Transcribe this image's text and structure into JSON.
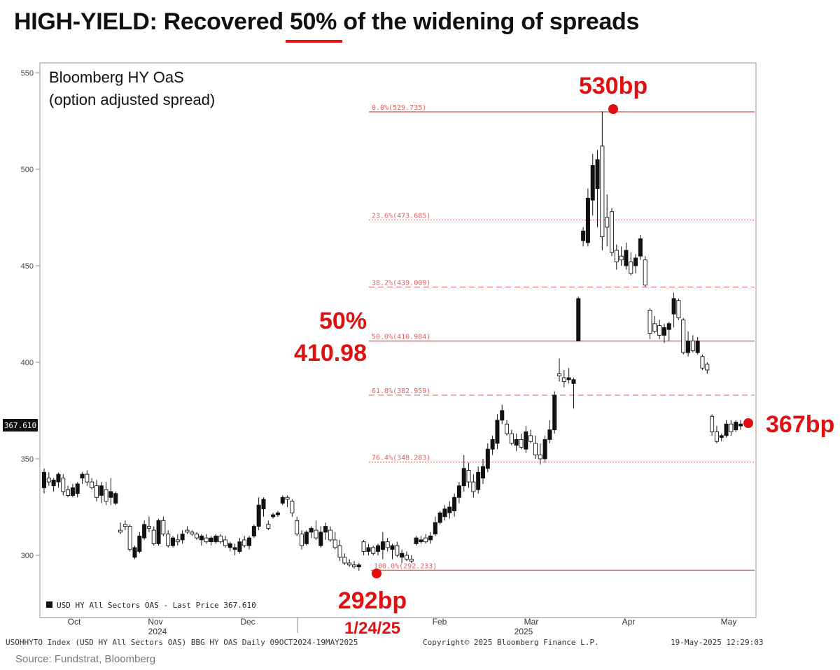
{
  "title": {
    "before": "HIGH-YIELD: Recovered ",
    "highlight": "50%",
    "after": " of the widening of spreads"
  },
  "chart_data": {
    "type": "candlestick",
    "title": "Bloomberg HY OaS",
    "subtitle": "(option adjusted spread)",
    "y_ticks": [
      300,
      350,
      400,
      450,
      500,
      550
    ],
    "ylim": [
      280,
      555
    ],
    "x_month_labels": [
      "Oct",
      "Nov",
      "Dec",
      "Feb",
      "Mar",
      "Apr",
      "May"
    ],
    "x_year_labels": [
      "2024",
      "2025"
    ],
    "x_range": [
      "09OCT2024",
      "19MAY2025"
    ],
    "last_price": 367.61,
    "last_price_label": "367.610",
    "legend": "USD HY All Sectors OAS - Last Price 367.610",
    "fib_levels": [
      {
        "label": "0.0%(529.735)",
        "value": 529.735,
        "style": "solid"
      },
      {
        "label": "23.6%(473.685)",
        "value": 473.685,
        "style": "dotted"
      },
      {
        "label": "38.2%(439.009)",
        "value": 439.009,
        "style": "dashed"
      },
      {
        "label": "50.0%(410.984)",
        "value": 410.984,
        "style": "solid"
      },
      {
        "label": "61.8%(382.959)",
        "value": 382.959,
        "style": "dashed"
      },
      {
        "label": "76.4%(348.283)",
        "value": 348.283,
        "style": "dotted"
      },
      {
        "label": "100.0%(292.233)",
        "value": 292.233,
        "style": "solid"
      }
    ],
    "annotations": {
      "peak": "530bp",
      "trough": "292bp",
      "trough_date": "1/24/25",
      "last": "367bp",
      "mid_pct": "50%",
      "mid_value": "410.98"
    },
    "candles": [
      {
        "o": 335,
        "h": 345,
        "l": 332,
        "c": 343
      },
      {
        "o": 340,
        "h": 343,
        "l": 336,
        "c": 338
      },
      {
        "o": 336,
        "h": 340,
        "l": 333,
        "c": 339
      },
      {
        "o": 338,
        "h": 343,
        "l": 335,
        "c": 342
      },
      {
        "o": 340,
        "h": 342,
        "l": 331,
        "c": 333
      },
      {
        "o": 334,
        "h": 336,
        "l": 330,
        "c": 331
      },
      {
        "o": 331,
        "h": 337,
        "l": 330,
        "c": 335
      },
      {
        "o": 332,
        "h": 338,
        "l": 330,
        "c": 337
      },
      {
        "o": 340,
        "h": 343,
        "l": 337,
        "c": 342
      },
      {
        "o": 342,
        "h": 344,
        "l": 336,
        "c": 338
      },
      {
        "o": 338,
        "h": 340,
        "l": 334,
        "c": 335
      },
      {
        "o": 336,
        "h": 339,
        "l": 328,
        "c": 330
      },
      {
        "o": 331,
        "h": 338,
        "l": 327,
        "c": 336
      },
      {
        "o": 334,
        "h": 338,
        "l": 326,
        "c": 328
      },
      {
        "o": 330,
        "h": 340,
        "l": 326,
        "c": 333
      },
      {
        "o": 327,
        "h": 333,
        "l": 326,
        "c": 332
      },
      {
        "o": 313,
        "h": 317,
        "l": 311,
        "c": 312
      },
      {
        "o": 316,
        "h": 318,
        "l": 313,
        "c": 315
      },
      {
        "o": 315,
        "h": 316,
        "l": 302,
        "c": 303
      },
      {
        "o": 299,
        "h": 305,
        "l": 298,
        "c": 304
      },
      {
        "o": 302,
        "h": 312,
        "l": 301,
        "c": 310
      },
      {
        "o": 309,
        "h": 318,
        "l": 308,
        "c": 316
      },
      {
        "o": 315,
        "h": 320,
        "l": 312,
        "c": 314
      },
      {
        "o": 313,
        "h": 315,
        "l": 305,
        "c": 306
      },
      {
        "o": 306,
        "h": 319,
        "l": 305,
        "c": 318
      },
      {
        "o": 318,
        "h": 320,
        "l": 310,
        "c": 311
      },
      {
        "o": 311,
        "h": 313,
        "l": 304,
        "c": 305
      },
      {
        "o": 305,
        "h": 310,
        "l": 304,
        "c": 309
      },
      {
        "o": 308,
        "h": 311,
        "l": 305,
        "c": 307
      },
      {
        "o": 308,
        "h": 313,
        "l": 306,
        "c": 311
      },
      {
        "o": 313,
        "h": 315,
        "l": 311,
        "c": 312
      },
      {
        "o": 312,
        "h": 313,
        "l": 310,
        "c": 311
      },
      {
        "o": 311,
        "h": 312,
        "l": 308,
        "c": 309
      },
      {
        "o": 308,
        "h": 311,
        "l": 305,
        "c": 310
      },
      {
        "o": 309,
        "h": 311,
        "l": 306,
        "c": 307
      },
      {
        "o": 307,
        "h": 310,
        "l": 305,
        "c": 309
      },
      {
        "o": 307,
        "h": 311,
        "l": 306,
        "c": 310
      },
      {
        "o": 310,
        "h": 311,
        "l": 306,
        "c": 307
      },
      {
        "o": 308,
        "h": 310,
        "l": 304,
        "c": 305
      },
      {
        "o": 304,
        "h": 307,
        "l": 302,
        "c": 306
      },
      {
        "o": 303,
        "h": 306,
        "l": 300,
        "c": 304
      },
      {
        "o": 302,
        "h": 309,
        "l": 301,
        "c": 307
      },
      {
        "o": 308,
        "h": 310,
        "l": 304,
        "c": 305
      },
      {
        "o": 305,
        "h": 310,
        "l": 303,
        "c": 309
      },
      {
        "o": 310,
        "h": 316,
        "l": 309,
        "c": 315
      },
      {
        "o": 315,
        "h": 330,
        "l": 313,
        "c": 326
      },
      {
        "o": 324,
        "h": 330,
        "l": 320,
        "c": 329
      },
      {
        "o": 316,
        "h": 318,
        "l": 313,
        "c": 314
      },
      {
        "o": 320,
        "h": 322,
        "l": 319,
        "c": 321
      },
      {
        "o": 321,
        "h": 323,
        "l": 320,
        "c": 322
      },
      {
        "o": 327,
        "h": 331,
        "l": 326,
        "c": 330
      },
      {
        "o": 330,
        "h": 331,
        "l": 325,
        "c": 329
      },
      {
        "o": 328,
        "h": 329,
        "l": 320,
        "c": 322
      },
      {
        "o": 318,
        "h": 320,
        "l": 310,
        "c": 311
      },
      {
        "o": 311,
        "h": 313,
        "l": 303,
        "c": 305
      },
      {
        "o": 306,
        "h": 313,
        "l": 305,
        "c": 312
      },
      {
        "o": 312,
        "h": 315,
        "l": 309,
        "c": 314
      },
      {
        "o": 313,
        "h": 318,
        "l": 308,
        "c": 309
      },
      {
        "o": 305,
        "h": 315,
        "l": 304,
        "c": 312
      },
      {
        "o": 312,
        "h": 317,
        "l": 308,
        "c": 315
      },
      {
        "o": 313,
        "h": 315,
        "l": 307,
        "c": 308
      },
      {
        "o": 308,
        "h": 312,
        "l": 303,
        "c": 304
      },
      {
        "o": 305,
        "h": 308,
        "l": 297,
        "c": 299
      },
      {
        "o": 299,
        "h": 301,
        "l": 295,
        "c": 296
      },
      {
        "o": 296,
        "h": 298,
        "l": 294,
        "c": 295
      },
      {
        "o": 295,
        "h": 297,
        "l": 293,
        "c": 294
      },
      {
        "o": 294,
        "h": 296,
        "l": 292,
        "c": 295
      },
      {
        "o": 307,
        "h": 308,
        "l": 300,
        "c": 302
      },
      {
        "o": 302,
        "h": 306,
        "l": 300,
        "c": 304
      },
      {
        "o": 304,
        "h": 305,
        "l": 300,
        "c": 301
      },
      {
        "o": 302,
        "h": 306,
        "l": 300,
        "c": 305
      },
      {
        "o": 303,
        "h": 312,
        "l": 298,
        "c": 307
      },
      {
        "o": 307,
        "h": 309,
        "l": 302,
        "c": 304
      },
      {
        "o": 303,
        "h": 306,
        "l": 298,
        "c": 305
      },
      {
        "o": 305,
        "h": 307,
        "l": 299,
        "c": 300
      },
      {
        "o": 299,
        "h": 303,
        "l": 296,
        "c": 301
      },
      {
        "o": 300,
        "h": 302,
        "l": 297,
        "c": 298
      },
      {
        "o": 298,
        "h": 300,
        "l": 296,
        "c": 297
      },
      {
        "o": 306,
        "h": 310,
        "l": 305,
        "c": 309
      },
      {
        "o": 307,
        "h": 310,
        "l": 306,
        "c": 308
      },
      {
        "o": 309,
        "h": 311,
        "l": 306,
        "c": 307
      },
      {
        "o": 308,
        "h": 312,
        "l": 306,
        "c": 310
      },
      {
        "o": 311,
        "h": 320,
        "l": 310,
        "c": 317
      },
      {
        "o": 317,
        "h": 323,
        "l": 316,
        "c": 322
      },
      {
        "o": 320,
        "h": 326,
        "l": 318,
        "c": 324
      },
      {
        "o": 322,
        "h": 328,
        "l": 319,
        "c": 325
      },
      {
        "o": 323,
        "h": 332,
        "l": 320,
        "c": 330
      },
      {
        "o": 330,
        "h": 338,
        "l": 327,
        "c": 336
      },
      {
        "o": 336,
        "h": 352,
        "l": 333,
        "c": 345
      },
      {
        "o": 344,
        "h": 348,
        "l": 335,
        "c": 338
      },
      {
        "o": 338,
        "h": 342,
        "l": 330,
        "c": 333
      },
      {
        "o": 334,
        "h": 346,
        "l": 332,
        "c": 343
      },
      {
        "o": 340,
        "h": 350,
        "l": 337,
        "c": 346
      },
      {
        "o": 345,
        "h": 358,
        "l": 343,
        "c": 355
      },
      {
        "o": 355,
        "h": 362,
        "l": 352,
        "c": 360
      },
      {
        "o": 358,
        "h": 373,
        "l": 355,
        "c": 370
      },
      {
        "o": 370,
        "h": 378,
        "l": 368,
        "c": 375
      },
      {
        "o": 368,
        "h": 370,
        "l": 362,
        "c": 363
      },
      {
        "o": 363,
        "h": 365,
        "l": 357,
        "c": 358
      },
      {
        "o": 357,
        "h": 363,
        "l": 354,
        "c": 360
      },
      {
        "o": 360,
        "h": 363,
        "l": 355,
        "c": 356
      },
      {
        "o": 355,
        "h": 367,
        "l": 353,
        "c": 364
      },
      {
        "o": 362,
        "h": 365,
        "l": 358,
        "c": 359
      },
      {
        "o": 358,
        "h": 362,
        "l": 350,
        "c": 352
      },
      {
        "o": 352,
        "h": 358,
        "l": 347,
        "c": 350
      },
      {
        "o": 350,
        "h": 362,
        "l": 348,
        "c": 360
      },
      {
        "o": 360,
        "h": 370,
        "l": 358,
        "c": 365
      },
      {
        "o": 365,
        "h": 385,
        "l": 363,
        "c": 383
      },
      {
        "o": 394,
        "h": 402,
        "l": 390,
        "c": 393
      },
      {
        "o": 392,
        "h": 396,
        "l": 387,
        "c": 390
      },
      {
        "o": 391,
        "h": 397,
        "l": 389,
        "c": 392
      },
      {
        "o": 389,
        "h": 392,
        "l": 376,
        "c": 391
      },
      {
        "o": 411,
        "h": 434,
        "l": 411,
        "c": 433
      },
      {
        "o": 463,
        "h": 470,
        "l": 460,
        "c": 468
      },
      {
        "o": 462,
        "h": 490,
        "l": 460,
        "c": 485
      },
      {
        "o": 484,
        "h": 508,
        "l": 476,
        "c": 502
      },
      {
        "o": 490,
        "h": 510,
        "l": 470,
        "c": 505
      },
      {
        "o": 512,
        "h": 530,
        "l": 458,
        "c": 465
      },
      {
        "o": 475,
        "h": 487,
        "l": 460,
        "c": 470
      },
      {
        "o": 478,
        "h": 480,
        "l": 455,
        "c": 457
      },
      {
        "o": 458,
        "h": 461,
        "l": 448,
        "c": 452
      },
      {
        "o": 455,
        "h": 460,
        "l": 450,
        "c": 453
      },
      {
        "o": 450,
        "h": 462,
        "l": 448,
        "c": 458
      },
      {
        "o": 452,
        "h": 457,
        "l": 445,
        "c": 446
      },
      {
        "o": 450,
        "h": 456,
        "l": 446,
        "c": 454
      },
      {
        "o": 455,
        "h": 466,
        "l": 453,
        "c": 464
      },
      {
        "o": 453,
        "h": 455,
        "l": 439,
        "c": 440
      },
      {
        "o": 427,
        "h": 428,
        "l": 412,
        "c": 415
      },
      {
        "o": 420,
        "h": 424,
        "l": 415,
        "c": 416
      },
      {
        "o": 419,
        "h": 422,
        "l": 412,
        "c": 414
      },
      {
        "o": 414,
        "h": 420,
        "l": 410,
        "c": 418
      },
      {
        "o": 417,
        "h": 421,
        "l": 411,
        "c": 420
      },
      {
        "o": 425,
        "h": 436,
        "l": 418,
        "c": 433
      },
      {
        "o": 432,
        "h": 433,
        "l": 422,
        "c": 423
      },
      {
        "o": 422,
        "h": 423,
        "l": 404,
        "c": 405
      },
      {
        "o": 405,
        "h": 416,
        "l": 403,
        "c": 411
      },
      {
        "o": 411,
        "h": 414,
        "l": 405,
        "c": 406
      },
      {
        "o": 405,
        "h": 413,
        "l": 404,
        "c": 411
      },
      {
        "o": 403,
        "h": 404,
        "l": 396,
        "c": 397
      },
      {
        "o": 399,
        "h": 400,
        "l": 394,
        "c": 396
      },
      {
        "o": 372,
        "h": 373,
        "l": 362,
        "c": 364
      },
      {
        "o": 364,
        "h": 367,
        "l": 358,
        "c": 359
      },
      {
        "o": 361,
        "h": 363,
        "l": 359,
        "c": 362
      },
      {
        "o": 362,
        "h": 370,
        "l": 361,
        "c": 368
      },
      {
        "o": 368,
        "h": 370,
        "l": 362,
        "c": 364
      },
      {
        "o": 365,
        "h": 370,
        "l": 364,
        "c": 369
      },
      {
        "o": 367,
        "h": 370,
        "l": 365,
        "c": 368
      }
    ]
  },
  "footer": {
    "left": "USOHHYTO Index (USD HY All Sectors OAS) BBG HY OAS  Daily 09OCT2024-19MAY2025",
    "center": "Copyright© 2025 Bloomberg Finance L.P.",
    "right": "19-May-2025 12:29:03"
  },
  "source": "Source: Fundstrat, Bloomberg",
  "colors": {
    "accent": "#e01010",
    "fib": "#e06060",
    "axis": "#888888"
  }
}
